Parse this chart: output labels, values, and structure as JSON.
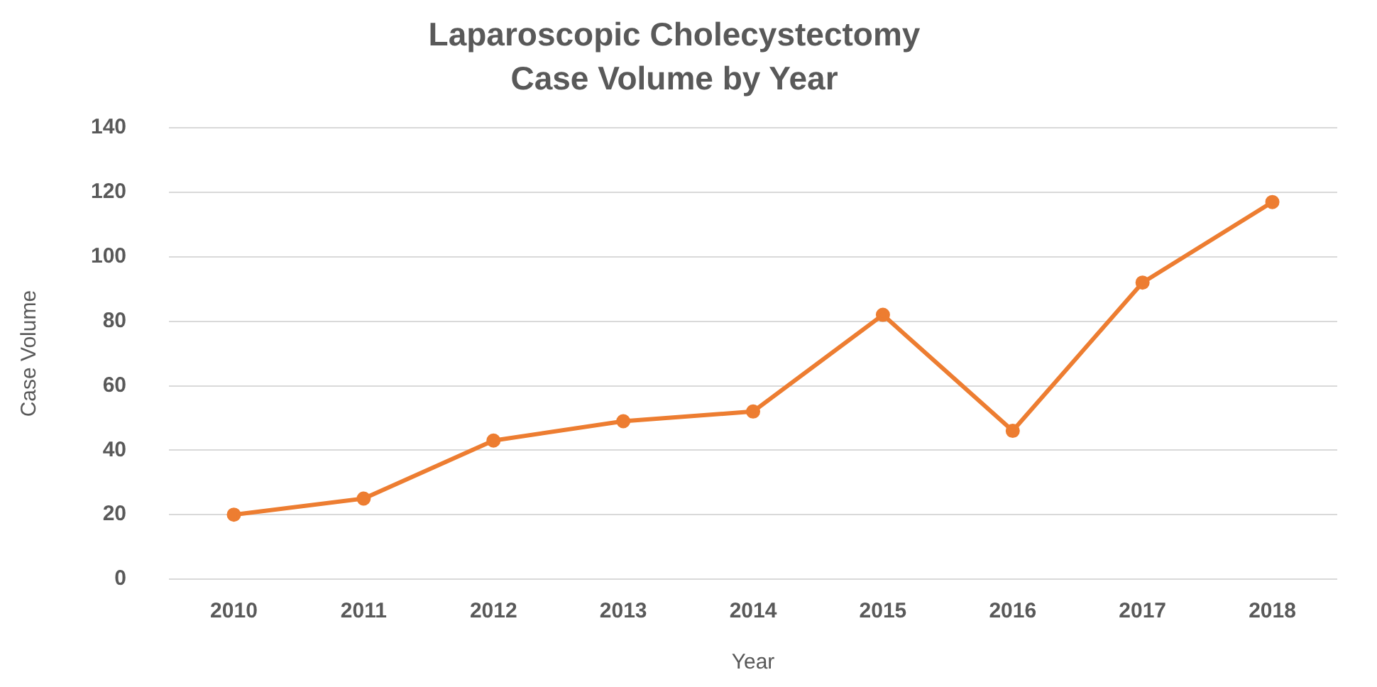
{
  "chart_data": {
    "type": "line",
    "title": "Laparoscopic Cholecystectomy\nCase Volume by Year",
    "xlabel": "Year",
    "ylabel": "Case Volume",
    "categories": [
      "2010",
      "2011",
      "2012",
      "2013",
      "2014",
      "2015",
      "2016",
      "2017",
      "2018"
    ],
    "series": [
      {
        "color": "#ed7d31",
        "values": [
          20,
          25,
          43,
          49,
          52,
          82,
          46,
          92,
          117
        ]
      }
    ],
    "ylim": [
      0,
      140
    ],
    "yticks": [
      0,
      20,
      40,
      60,
      80,
      100,
      120,
      140
    ],
    "grid": "y",
    "legend": false,
    "marker": "circle",
    "line_style": "solid"
  }
}
